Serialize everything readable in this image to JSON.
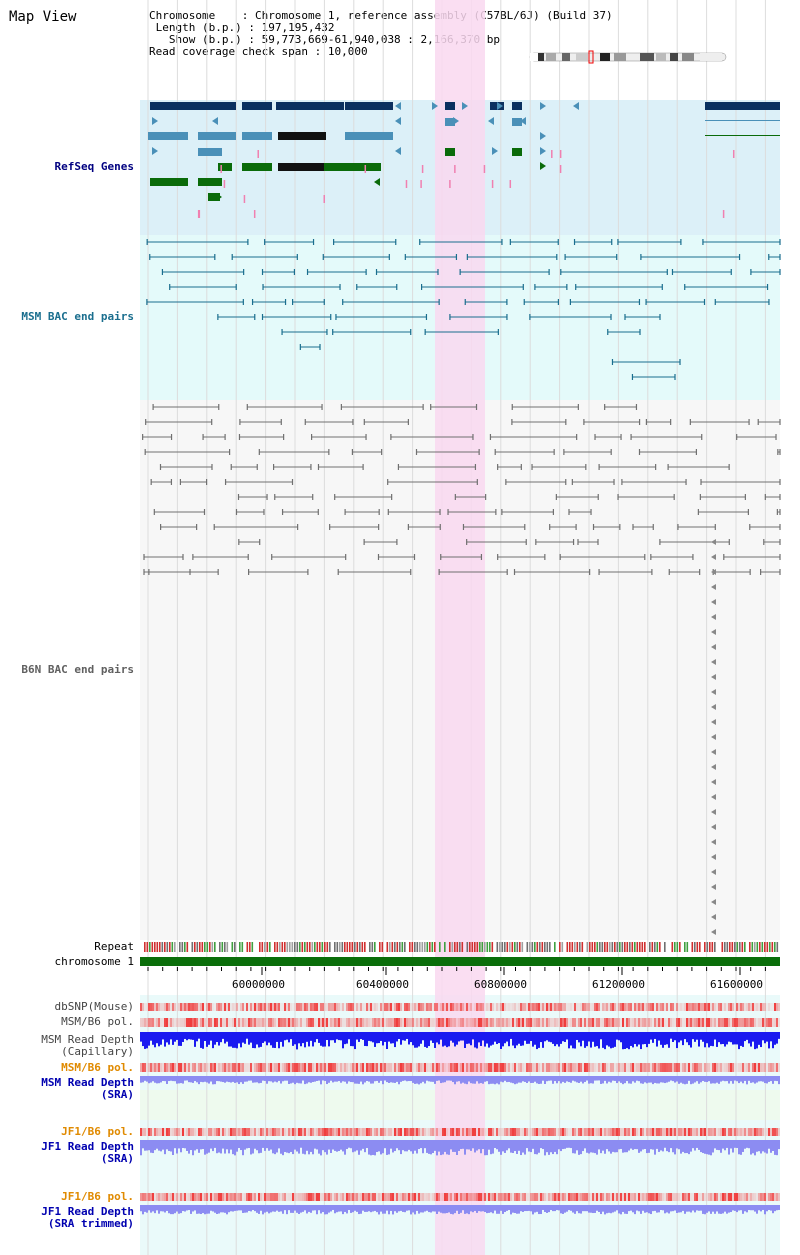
{
  "title": "Map View",
  "info": {
    "chromosome_label": "Chromosome",
    "chromosome_value": "Chromosome 1, reference assembly (C57BL/6J) (Build 37)",
    "length_label": "Length (b.p.)",
    "length_value": "197,195,432",
    "show_label": "Show (b.p.)",
    "show_value": "59,773,669-61,940,038 : 2,166,370 bp",
    "coverage_label": "Read coverage check span",
    "coverage_value": "10,000"
  },
  "tracks": {
    "refseq": "RefSeq Genes",
    "msm_bac": "MSM BAC end pairs",
    "b6n_bac": "B6N BAC end pairs",
    "repeat": "Repeat",
    "chromosome": "chromosome 1",
    "dbsnp": "dbSNP(Mouse)",
    "msm_b6_pol_1": "MSM/B6 pol.",
    "msm_depth_cap": "MSM Read Depth\n(Capillary)",
    "msm_b6_pol_2": "MSM/B6 pol.",
    "msm_depth_sra": "MSM Read Depth\n(SRA)",
    "jf1_b6_pol_1": "JF1/B6 pol.",
    "jf1_depth_sra": "JF1 Read Depth\n(SRA)",
    "jf1_b6_pol_2": "JF1/B6 pol.",
    "jf1_depth_trim": "JF1 Read Depth\n(SRA trimmed)"
  },
  "axis": {
    "ticks": [
      "60000000",
      "60400000",
      "60800000",
      "61200000",
      "61600000"
    ]
  },
  "colors": {
    "refseq_bg": "#dcf0f8",
    "msm_bg": "#e4fafa",
    "b6n_bg": "#f7f7f7",
    "highlight": "#f9d8f0",
    "gene_dark": "#0a3060",
    "gene_mid": "#4a90b8",
    "gene_green": "#0a6b0a",
    "msm_line": "#1a6e8e",
    "b6n_line": "#707070",
    "chrom_bar": "#0a6e0a",
    "depth_blue": "#1a1af0",
    "depth_light": "#8c8cf2",
    "pol_red": "#f04040"
  }
}
